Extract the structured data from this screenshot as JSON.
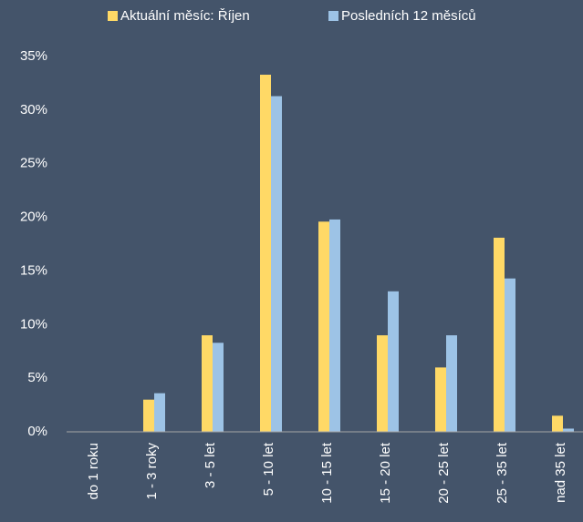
{
  "chart_data": {
    "type": "bar",
    "categories": [
      "do 1 roku",
      "1 - 3 roky",
      "3 - 5 let",
      "5 - 10 let",
      "10 - 15 let",
      "15 - 20 let",
      "20 - 25 let",
      "25 - 35 let",
      "nad 35 let"
    ],
    "series": [
      {
        "name": "Aktuální měsíc: Říjen",
        "color": "#ffd966",
        "values": [
          0,
          3,
          9,
          33.3,
          19.6,
          9,
          6,
          18.1,
          1.5
        ]
      },
      {
        "name": "Posledních 12 měsíců",
        "color": "#9dc3e6",
        "values": [
          0,
          3.6,
          8.3,
          31.3,
          19.8,
          13.1,
          9,
          14.3,
          0.3
        ]
      }
    ],
    "ylim": [
      0,
      35
    ],
    "yticks": [
      {
        "value": 0,
        "label": "0%"
      },
      {
        "value": 5,
        "label": "5%"
      },
      {
        "value": 10,
        "label": "10%"
      },
      {
        "value": 15,
        "label": "15%"
      },
      {
        "value": 20,
        "label": "20%"
      },
      {
        "value": 25,
        "label": "25%"
      },
      {
        "value": 30,
        "label": "30%"
      },
      {
        "value": 35,
        "label": "35%"
      }
    ],
    "grid": false,
    "legend": "top"
  }
}
